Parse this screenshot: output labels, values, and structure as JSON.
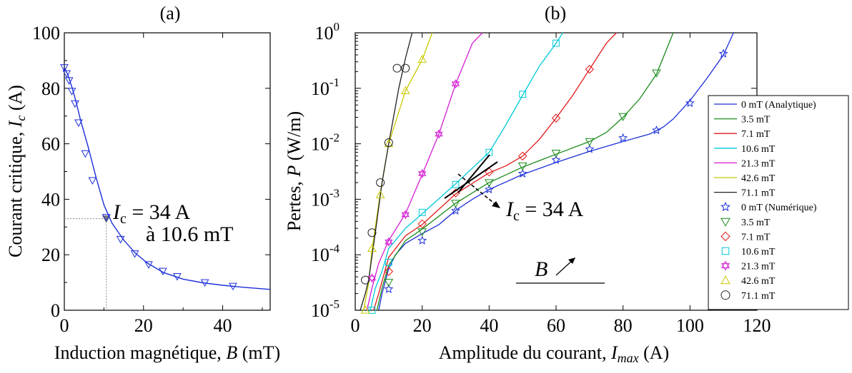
{
  "chart_data": [
    {
      "type": "line",
      "title": "(a)",
      "xlabel": {
        "main": "Induction magnétique, ",
        "var": "B",
        "unit": " (mT)"
      },
      "ylabel": {
        "main": "Courant critique, ",
        "var": "I",
        "sub": "c",
        "unit": " (A)"
      },
      "xlim": [
        0,
        52
      ],
      "ylim": [
        0,
        100
      ],
      "x_ticks": [
        0,
        20,
        40
      ],
      "y_ticks": [
        0,
        20,
        40,
        60,
        80,
        100
      ],
      "color": "#1c2fd8",
      "curve": {
        "x": [
          0,
          1,
          2,
          3,
          4,
          6,
          8,
          10,
          12,
          15,
          18,
          21,
          25,
          30,
          35,
          40,
          45,
          52
        ],
        "y": [
          87.5,
          84.5,
          80,
          75,
          69,
          59,
          48,
          38,
          31.5,
          25.3,
          20.5,
          17,
          13.6,
          11.2,
          9.9,
          9.0,
          8.3,
          7.5
        ]
      },
      "markers": {
        "x": [
          0,
          0.6,
          1.2,
          1.9,
          2.7,
          3.6,
          5.3,
          7.1,
          10.6,
          14.2,
          17.8,
          21.3,
          24.9,
          28.5,
          35.5,
          42.6
        ],
        "y": [
          87.5,
          85.3,
          82.8,
          79,
          74.5,
          67.6,
          56.5,
          46.8,
          33.5,
          25.6,
          20.4,
          16.5,
          14.1,
          12.2,
          10,
          8.7
        ]
      },
      "highlight": {
        "x": 10.6,
        "y": 33,
        "label_var": "I",
        "label_sub": "c",
        "label_value": " = 34 A",
        "label_line2": "à 10.6 mT"
      }
    },
    {
      "type": "line",
      "title": "(b)",
      "xlabel": {
        "main": "Amplitude du courant, ",
        "var": "I",
        "sub": "max",
        "unit": " (A)"
      },
      "ylabel": {
        "main": "Pertes, ",
        "var": "P",
        "unit": " (W/m)"
      },
      "xlim": [
        0,
        120
      ],
      "ylim": [
        1e-05,
        1
      ],
      "y_scale": "log",
      "x_ticks": [
        0,
        20,
        40,
        60,
        80,
        100,
        120
      ],
      "y_ticks": [
        {
          "value": 1e-05,
          "base": "10",
          "exp": "-5"
        },
        {
          "value": 0.0001,
          "base": "10",
          "exp": "-4"
        },
        {
          "value": 0.001,
          "base": "10",
          "exp": "-3"
        },
        {
          "value": 0.01,
          "base": "10",
          "exp": "-2"
        },
        {
          "value": 0.1,
          "base": "10",
          "exp": "-1"
        },
        {
          "value": 1,
          "base": "10",
          "exp": "0"
        }
      ],
      "series": [
        {
          "name": "0 mT (Analytique)",
          "color": "#1c2fd8",
          "x": [
            7,
            8,
            10,
            12,
            15,
            20,
            25,
            30,
            35,
            40,
            50,
            60,
            70,
            80,
            88,
            92,
            95,
            100,
            105,
            110,
            113
          ],
          "y": [
            1e-05,
            2e-05,
            5.6e-05,
            0.0001,
            0.00016,
            0.00024,
            0.00035,
            0.00063,
            0.001,
            0.0015,
            0.0028,
            0.0046,
            0.0073,
            0.011,
            0.015,
            0.02,
            0.028,
            0.06,
            0.15,
            0.4,
            1.0
          ]
        },
        {
          "name": "3.5 mT",
          "color": "#1a8c1a",
          "x": [
            6.5,
            8,
            10,
            15,
            20,
            30,
            40,
            50,
            60,
            70,
            75,
            80,
            85,
            90,
            95
          ],
          "y": [
            1e-05,
            2.5e-05,
            6.5e-05,
            0.00018,
            0.00029,
            0.00085,
            0.002,
            0.0038,
            0.0065,
            0.011,
            0.016,
            0.03,
            0.065,
            0.18,
            1.0
          ]
        },
        {
          "name": "7.1 mT",
          "color": "#e01818",
          "x": [
            5.5,
            7,
            10,
            15,
            20,
            30,
            40,
            45,
            50,
            55,
            60,
            65,
            70,
            75,
            78
          ],
          "y": [
            1e-05,
            2e-05,
            9e-05,
            0.00022,
            0.00035,
            0.00125,
            0.003,
            0.004,
            0.006,
            0.012,
            0.029,
            0.075,
            0.22,
            0.65,
            1.0
          ]
        },
        {
          "name": "10.6 mT",
          "color": "#00c8d8",
          "x": [
            4.5,
            6,
            8,
            10,
            15,
            20,
            30,
            40,
            45,
            50,
            55,
            60,
            62
          ],
          "y": [
            1e-05,
            2.5e-05,
            5e-05,
            0.00013,
            0.0003,
            0.00055,
            0.0019,
            0.007,
            0.022,
            0.075,
            0.25,
            0.65,
            1.0
          ]
        },
        {
          "name": "21.3 mT",
          "color": "#d41cd4",
          "x": [
            3.5,
            5,
            7,
            10,
            15,
            20,
            25,
            30,
            35,
            38
          ],
          "y": [
            1e-05,
            2.5e-05,
            7e-05,
            0.00018,
            0.00055,
            0.0028,
            0.015,
            0.12,
            0.65,
            1.0
          ]
        },
        {
          "name": "42.6 mT",
          "color": "#c8c800",
          "x": [
            2.5,
            4,
            5,
            7.5,
            10,
            15,
            20,
            23
          ],
          "y": [
            1e-05,
            3e-05,
            0.00012,
            0.0013,
            0.01,
            0.09,
            0.33,
            1.0
          ]
        },
        {
          "name": "71.1 mT",
          "color": "#222222",
          "x": [
            1.5,
            3,
            4,
            6,
            8,
            10,
            13,
            15,
            17
          ],
          "y": [
            1e-05,
            2e-05,
            3.5e-05,
            0.00025,
            0.002,
            0.01,
            0.1,
            0.35,
            1.0
          ]
        }
      ],
      "marker_series": [
        {
          "name": "0 mT (Numérique)",
          "color": "#1c2fd8",
          "marker": "star",
          "x": [
            10,
            20,
            30,
            40,
            50,
            60,
            70,
            80,
            90,
            100,
            110
          ],
          "y": [
            2.4e-05,
            0.00018,
            0.00062,
            0.0015,
            0.0029,
            0.0051,
            0.008,
            0.0127,
            0.0175,
            0.054,
            0.42
          ]
        },
        {
          "name": "3.5 mT",
          "color": "#1a8c1a",
          "marker": "triangle-down",
          "x": [
            10,
            20,
            30,
            40,
            50,
            60,
            70,
            80,
            90
          ],
          "y": [
            3.2e-05,
            0.00026,
            0.00085,
            0.002,
            0.004,
            0.0068,
            0.011,
            0.031,
            0.19
          ]
        },
        {
          "name": "7.1 mT",
          "color": "#e01818",
          "marker": "diamond",
          "x": [
            10,
            20,
            30,
            40,
            50,
            60,
            70
          ],
          "y": [
            5e-05,
            0.00036,
            0.0013,
            0.0031,
            0.006,
            0.029,
            0.22
          ]
        },
        {
          "name": "10.6 mT",
          "color": "#00c8d8",
          "marker": "square",
          "x": [
            5,
            10,
            20,
            30,
            40,
            50,
            60
          ],
          "y": [
            1e-05,
            7.3e-05,
            0.00058,
            0.00185,
            0.007,
            0.078,
            0.65
          ]
        },
        {
          "name": "21.3 mT",
          "color": "#d41cd4",
          "marker": "hexagram",
          "x": [
            5,
            10,
            15,
            20,
            25,
            30
          ],
          "y": [
            3.8e-05,
            0.00017,
            0.00053,
            0.0029,
            0.015,
            0.12
          ]
        },
        {
          "name": "42.6 mT",
          "color": "#c8c800",
          "marker": "triangle-up",
          "x": [
            3,
            5,
            7.5,
            10,
            15,
            20
          ],
          "y": [
            1e-05,
            0.00013,
            0.0012,
            0.01,
            0.09,
            0.33
          ]
        },
        {
          "name": "71.1 mT",
          "color": "#222222",
          "marker": "circle",
          "x": [
            3,
            5,
            7.5,
            10,
            12.5,
            15
          ],
          "y": [
            3.5e-05,
            0.00025,
            0.002,
            0.0105,
            0.23,
            0.23
          ]
        }
      ],
      "annotations": [
        {
          "text_var": "I",
          "text_sub": "c",
          "text_value": " = 34 A"
        },
        {
          "text_var": "B",
          "arrow": "up-right"
        }
      ],
      "legend_placement": "right"
    }
  ]
}
